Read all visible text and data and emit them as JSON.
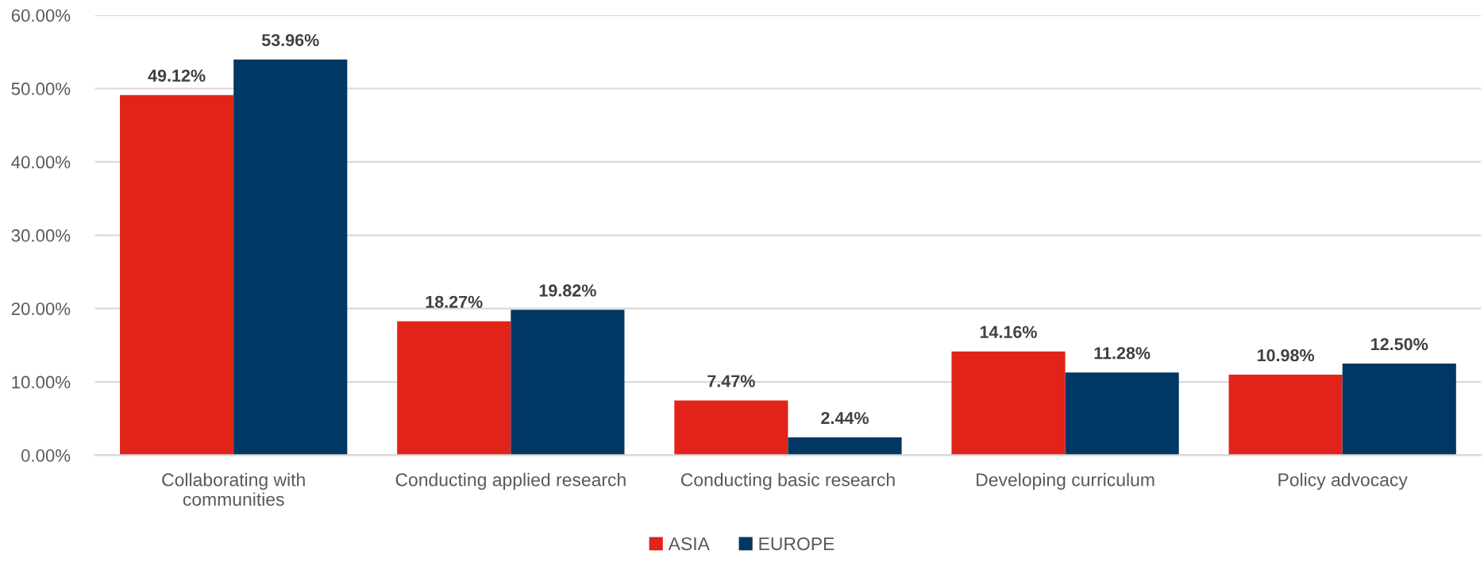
{
  "chart_data": {
    "type": "bar",
    "categories": [
      "Collaborating with communities",
      "Conducting applied research",
      "Conducting basic research",
      "Developing curriculum",
      "Policy advocacy"
    ],
    "series": [
      {
        "name": "ASIA",
        "color": "#e2231a",
        "values": [
          49.12,
          18.27,
          7.47,
          14.16,
          10.98
        ],
        "value_labels": [
          "49.12%",
          "18.27%",
          "7.47%",
          "14.16%",
          "10.98%"
        ]
      },
      {
        "name": "EUROPE",
        "color": "#003865",
        "values": [
          53.96,
          19.82,
          2.44,
          11.28,
          12.5
        ],
        "value_labels": [
          "53.96%",
          "19.82%",
          "2.44%",
          "11.28%",
          "12.50%"
        ]
      }
    ],
    "ylim": [
      0,
      60
    ],
    "yticks": [
      {
        "value": 0,
        "label": "0.00%"
      },
      {
        "value": 10,
        "label": "10.00%"
      },
      {
        "value": 20,
        "label": "20.00%"
      },
      {
        "value": 30,
        "label": "30.00%"
      },
      {
        "value": 40,
        "label": "40.00%"
      },
      {
        "value": 50,
        "label": "50.00%"
      },
      {
        "value": 60,
        "label": "60.00%"
      }
    ],
    "grid": "y",
    "legend": "bottom"
  }
}
